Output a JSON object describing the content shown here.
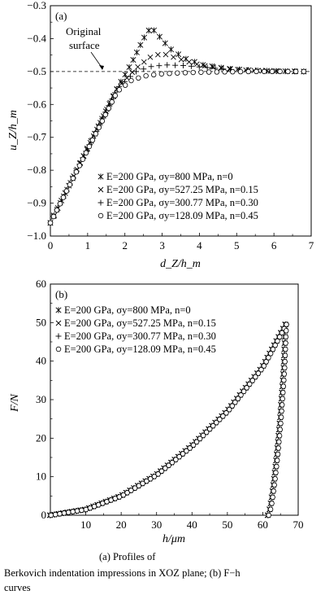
{
  "chart_data": [
    {
      "type": "scatter",
      "panel_label": "(a)",
      "xlabel": "d_Z/h_m",
      "ylabel": "u_Z/h_m",
      "xlim": [
        0,
        7
      ],
      "ylim": [
        -1.0,
        -0.3
      ],
      "xticks": [
        "0",
        "1",
        "2",
        "3",
        "4",
        "5",
        "6",
        "7"
      ],
      "yticks": [
        "-0.3",
        "-0.4",
        "-0.5",
        "-0.6",
        "-0.7",
        "-0.8",
        "-0.9",
        "-1.0"
      ],
      "grid": false,
      "legend_position": "bottom-left",
      "annotation": {
        "text_line1": "Original",
        "text_line2": "surface",
        "y": -0.5
      },
      "series": [
        {
          "name": "E=200 GPa, σy=800 MPa, n=0",
          "marker": "asterisk",
          "x": [
            0,
            1.8,
            2.2,
            2.5,
            2.7,
            2.9,
            3.2,
            3.6,
            4.1,
            4.8,
            5.5,
            6.2,
            6.8
          ],
          "y": [
            -0.96,
            -0.55,
            -0.47,
            -0.4,
            -0.365,
            -0.39,
            -0.43,
            -0.46,
            -0.48,
            -0.492,
            -0.497,
            -0.499,
            -0.5
          ]
        },
        {
          "name": "E=200 GPa, σy=527.25 MPa, n=0.15",
          "marker": "x",
          "x": [
            0,
            1.8,
            2.3,
            2.7,
            3.0,
            3.4,
            4.0,
            4.6,
            5.3,
            6.0,
            6.8
          ],
          "y": [
            -0.96,
            -0.55,
            -0.49,
            -0.455,
            -0.445,
            -0.46,
            -0.48,
            -0.49,
            -0.496,
            -0.499,
            -0.5
          ]
        },
        {
          "name": "E=200 GPa, σy=300.77 MPa, n=0.30",
          "marker": "plus",
          "x": [
            0,
            1.8,
            2.3,
            2.7,
            3.1,
            3.6,
            4.2,
            4.8,
            5.5,
            6.2,
            6.8
          ],
          "y": [
            -0.96,
            -0.55,
            -0.5,
            -0.485,
            -0.48,
            -0.482,
            -0.488,
            -0.494,
            -0.497,
            -0.499,
            -0.5
          ]
        },
        {
          "name": "E=200 GPa, σy=128.09 MPa, n=0.45",
          "marker": "circle",
          "x": [
            0,
            1.8,
            2.2,
            2.6,
            3.0,
            3.5,
            4.1,
            4.8,
            5.5,
            6.2,
            6.8
          ],
          "y": [
            -0.96,
            -0.56,
            -0.525,
            -0.512,
            -0.507,
            -0.504,
            -0.502,
            -0.501,
            -0.5,
            -0.5,
            -0.5
          ]
        }
      ]
    },
    {
      "type": "scatter",
      "panel_label": "(b)",
      "xlabel": "h/μm",
      "ylabel": "F/N",
      "xlim": [
        0,
        70
      ],
      "ylim": [
        0,
        60
      ],
      "xticks": [
        "10",
        "20",
        "30",
        "40",
        "50",
        "60",
        "70"
      ],
      "yticks": [
        "0",
        "10",
        "20",
        "30",
        "40",
        "50",
        "60"
      ],
      "grid": false,
      "legend_position": "top-left",
      "series": [
        {
          "name": "E=200 GPa, σy=800 MPa, n=0",
          "marker": "asterisk",
          "loading": {
            "x": [
              0,
              10,
              20,
              30,
              40,
              50,
              60,
              66.5
            ],
            "y": [
              0,
              1.5,
              5,
              10.5,
              18,
              27,
              38.5,
              49.5
            ]
          },
          "unloading": {
            "x": [
              66.5,
              66,
              65,
              64,
              63,
              62.2,
              61.5
            ],
            "y": [
              49.5,
              38,
              25,
              15,
              7,
              2,
              0
            ]
          }
        },
        {
          "name": "E=200 GPa, σy=527.25 MPa, n=0.15",
          "marker": "x",
          "loading": {
            "x": [
              0,
              10,
              20,
              30,
              40,
              50,
              60,
              66.5
            ],
            "y": [
              0,
              1.5,
              5,
              10.5,
              18,
              27,
              38.5,
              49.5
            ]
          },
          "unloading": {
            "x": [
              66.5,
              66,
              65,
              64,
              63,
              62.2,
              61.5
            ],
            "y": [
              49.5,
              38,
              25,
              15,
              7,
              2,
              0
            ]
          }
        },
        {
          "name": "E=200 GPa, σy=300.77 MPa, n=0.30",
          "marker": "plus",
          "loading": {
            "x": [
              0,
              10,
              20,
              30,
              40,
              50,
              60,
              66.5
            ],
            "y": [
              0,
              1.5,
              5,
              10.5,
              18,
              27,
              38.5,
              49.5
            ]
          },
          "unloading": {
            "x": [
              66.5,
              66,
              65,
              64,
              63,
              62.2,
              61.5
            ],
            "y": [
              49.5,
              38,
              25,
              15,
              7,
              2,
              0
            ]
          }
        },
        {
          "name": "E=200 GPa, σy=128.09 MPa, n=0.45",
          "marker": "circle",
          "loading": {
            "x": [
              0,
              10,
              20,
              30,
              40,
              50,
              60,
              66.5
            ],
            "y": [
              0,
              1.5,
              5,
              10.5,
              18,
              27,
              38.5,
              49.5
            ]
          },
          "unloading": {
            "x": [
              66.5,
              66,
              65,
              64,
              63,
              62.2,
              61.5
            ],
            "y": [
              49.5,
              38,
              25,
              15,
              7,
              2,
              0
            ]
          }
        }
      ]
    }
  ],
  "caption": {
    "line1": "(a)  Profiles  of",
    "line2": "Berkovich indentation impressions in XOZ plane; (b) F−h",
    "line3": "curves"
  }
}
